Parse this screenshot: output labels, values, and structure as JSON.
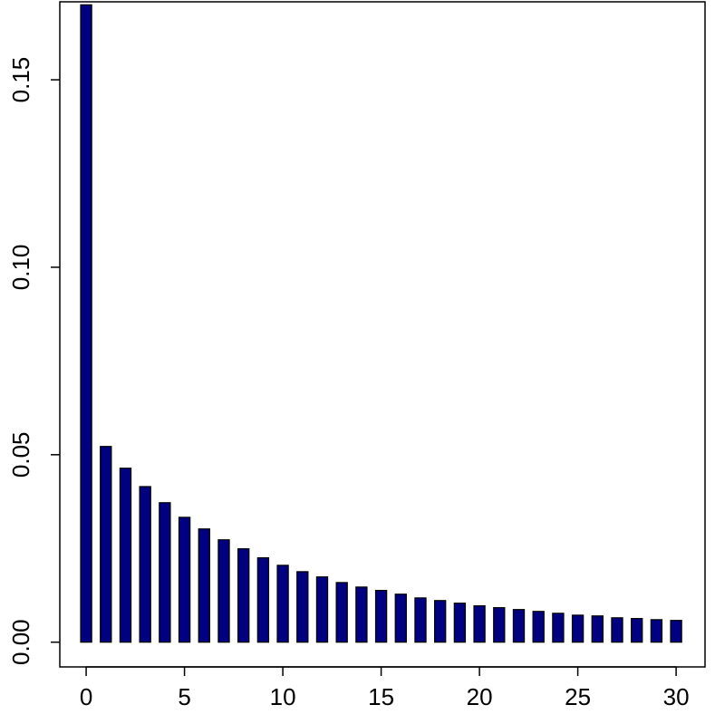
{
  "chart_data": {
    "type": "bar",
    "x": [
      0,
      1,
      2,
      3,
      4,
      5,
      6,
      7,
      8,
      9,
      10,
      11,
      12,
      13,
      14,
      15,
      16,
      17,
      18,
      19,
      20,
      21,
      22,
      23,
      24,
      25,
      26,
      27,
      28,
      29,
      30
    ],
    "values": [
      0.17,
      0.0522,
      0.0464,
      0.0415,
      0.0372,
      0.0333,
      0.0302,
      0.0273,
      0.0249,
      0.0225,
      0.0205,
      0.0188,
      0.0174,
      0.0159,
      0.0147,
      0.0138,
      0.0128,
      0.0118,
      0.0111,
      0.0104,
      0.0097,
      0.0092,
      0.0087,
      0.0082,
      0.0077,
      0.0072,
      0.007,
      0.0065,
      0.0063,
      0.006,
      0.0058
    ],
    "color": "#000080",
    "xlim": [
      -1.34,
      31.47
    ],
    "xticks": [
      0,
      5,
      10,
      15,
      20,
      25,
      30
    ],
    "ylim": [
      -0.0066,
      0.1708
    ],
    "yticks": [
      {
        "value": 0,
        "label": "0.00"
      },
      {
        "value": 0.05,
        "label": "0.05"
      },
      {
        "value": 0.1,
        "label": "0.10"
      },
      {
        "value": 0.15,
        "label": "0.15"
      }
    ]
  }
}
